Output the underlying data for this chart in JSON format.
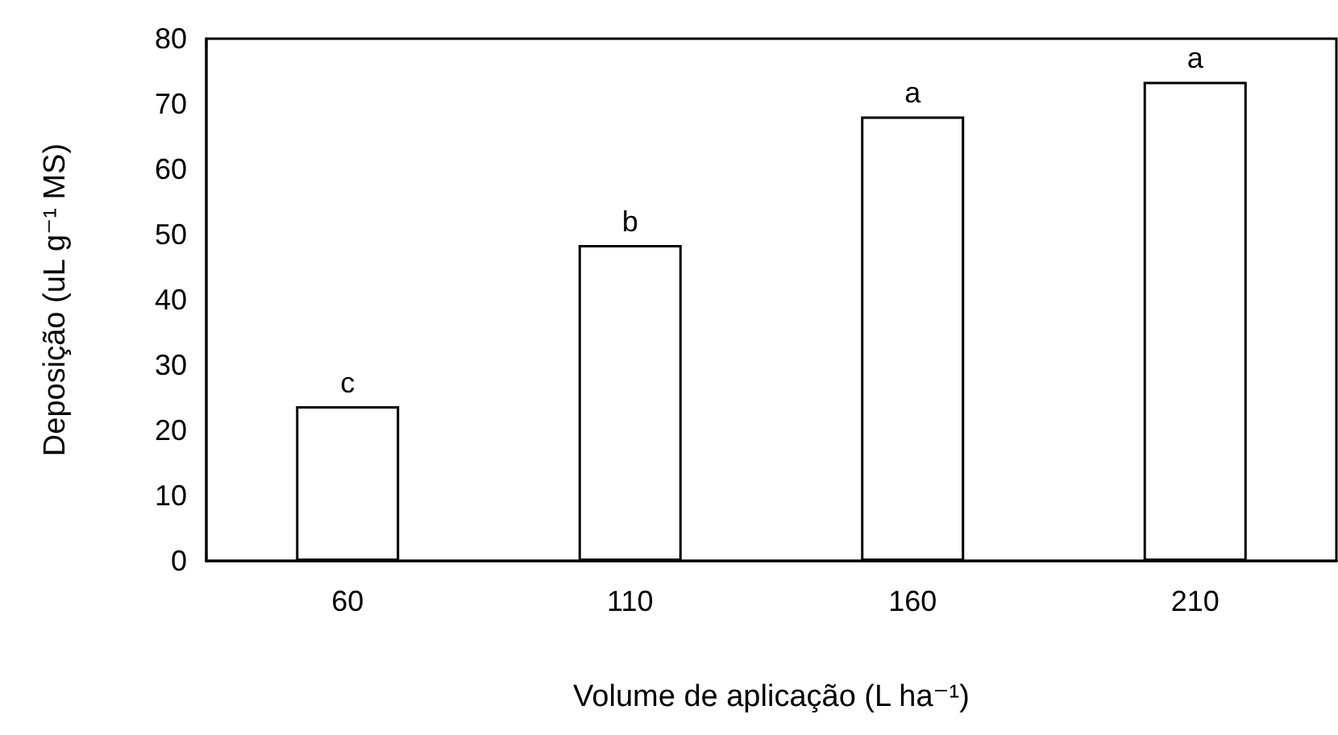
{
  "chart_data": {
    "type": "bar",
    "xlabel": "Volume de aplicação (L ha⁻¹)",
    "ylabel": "Deposição (uL g⁻¹ MS)",
    "categories": [
      "60",
      "110",
      "160",
      "210"
    ],
    "values": [
      23.7,
      48.4,
      68.1,
      73.4
    ],
    "color": "#ffffff",
    "ylim": [
      0,
      80
    ],
    "yticks": [
      0,
      10,
      20,
      30,
      40,
      50,
      60,
      70,
      80
    ],
    "grid": false,
    "annotations": [
      {
        "text": "c",
        "x": "60",
        "y": 23.7
      },
      {
        "text": "b",
        "x": "110",
        "y": 48.4
      },
      {
        "text": "a",
        "x": "160",
        "y": 68.1
      },
      {
        "text": "a",
        "x": "210",
        "y": 73.4
      }
    ]
  }
}
